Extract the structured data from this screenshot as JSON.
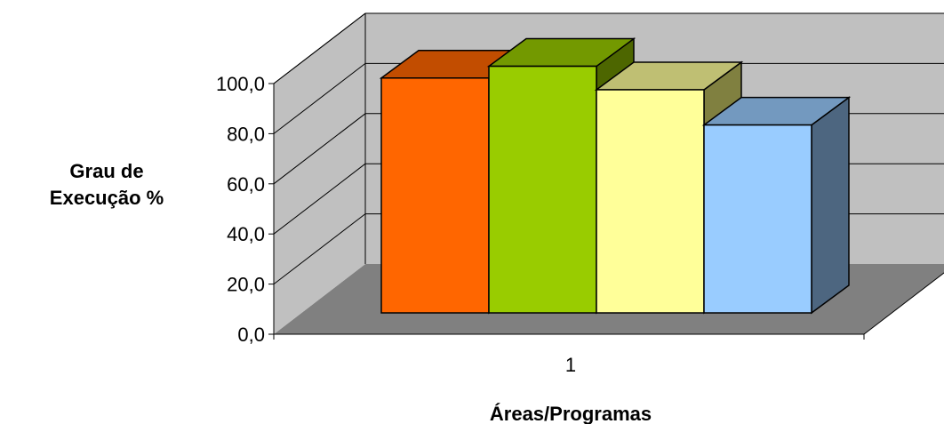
{
  "chart_data": {
    "type": "bar",
    "categories": [
      "1"
    ],
    "series": [
      {
        "values": [
          100.0
        ],
        "color": "#FF6600",
        "side_color": "#993D00",
        "top_color": "#C24D00"
      },
      {
        "values": [
          105.0
        ],
        "color": "#99CC00",
        "side_color": "#4D6600",
        "top_color": "#739900"
      },
      {
        "values": [
          95.0
        ],
        "color": "#FFFF99",
        "side_color": "#808040",
        "top_color": "#BFBF73"
      },
      {
        "values": [
          80.0
        ],
        "color": "#99CCFF",
        "side_color": "#4D6680",
        "top_color": "#7399BF"
      }
    ],
    "xlabel": "Áreas/Programas",
    "ylabel_lines": [
      "Grau de",
      "Execução %"
    ],
    "ylim": [
      0,
      100
    ],
    "yticks": [
      "0,0",
      "20,0",
      "40,0",
      "60,0",
      "80,0",
      "100,0"
    ],
    "projection": "3d-column",
    "grid": true,
    "legend": "none",
    "colors": {
      "back_wall": "#C0C0C0",
      "side_wall": "#C0C0C0",
      "floor": "#808080",
      "grid": "#000000"
    }
  }
}
